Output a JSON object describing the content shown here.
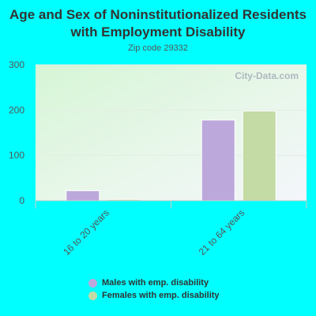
{
  "chart_data": {
    "type": "bar",
    "title": "Age and Sex of Noninstitutionalized Residents with Employment Disability",
    "subtitle": "Zip code 29332",
    "categories": [
      "16 to 20 years",
      "21 to 64 years"
    ],
    "series": [
      {
        "name": "Males with emp. disability",
        "values": [
          22,
          178
        ],
        "color": "#bca8db"
      },
      {
        "name": "Females with emp. disability",
        "values": [
          3,
          198
        ],
        "color": "#c4dba5"
      }
    ],
    "ylim": [
      0,
      300
    ],
    "yticks": [
      0,
      100,
      200,
      300
    ],
    "grid": true,
    "legend_position": "bottom"
  },
  "watermark_text": "City-Data.com",
  "background_color": "#00ffff"
}
